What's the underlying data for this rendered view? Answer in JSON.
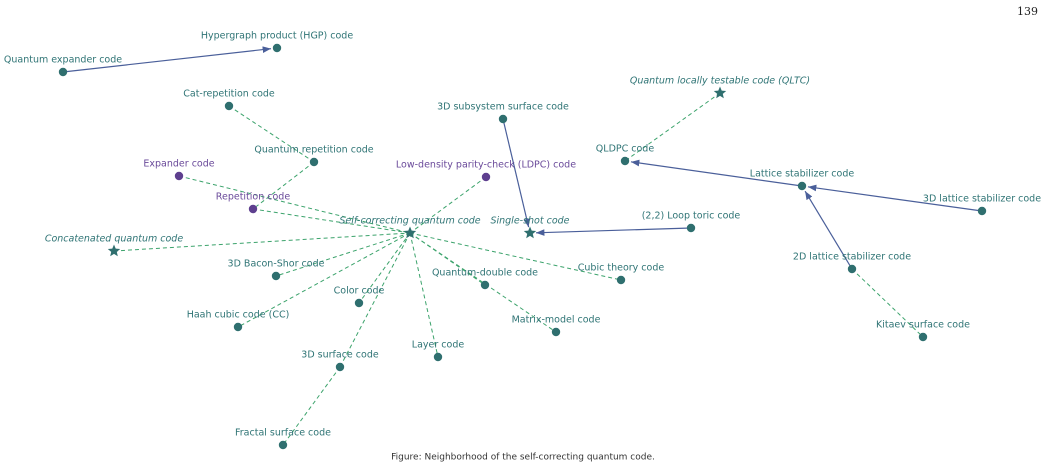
{
  "page_number": "139",
  "caption": "Figure: Neighborhood of the self-correcting quantum code.",
  "nodes": [
    {
      "label": "Quantum expander code",
      "shape": "circle",
      "color": "teal",
      "italic": false
    },
    {
      "label": "Hypergraph product (HGP) code",
      "shape": "circle",
      "color": "teal",
      "italic": false
    },
    {
      "label": "Cat-repetition code",
      "shape": "circle",
      "color": "teal",
      "italic": false
    },
    {
      "label": "Quantum repetition code",
      "shape": "circle",
      "color": "teal",
      "italic": false
    },
    {
      "label": "Expander code",
      "shape": "circle",
      "color": "purple",
      "italic": false
    },
    {
      "label": "Repetition code",
      "shape": "circle",
      "color": "purple",
      "italic": false
    },
    {
      "label": "Low-density parity-check (LDPC) code",
      "shape": "circle",
      "color": "purple",
      "italic": false
    },
    {
      "label": "3D subsystem surface code",
      "shape": "circle",
      "color": "teal",
      "italic": false
    },
    {
      "label": "Self-correcting quantum code",
      "shape": "star",
      "color": "teal",
      "italic": true
    },
    {
      "label": "Single-shot code",
      "shape": "star",
      "color": "teal",
      "italic": true
    },
    {
      "label": "Concatenated quantum code",
      "shape": "star",
      "color": "teal",
      "italic": true
    },
    {
      "label": "(2,2) Loop toric code",
      "shape": "circle",
      "color": "teal",
      "italic": false
    },
    {
      "label": "3D Bacon-Shor code",
      "shape": "circle",
      "color": "teal",
      "italic": false
    },
    {
      "label": "Quantum-double code",
      "shape": "circle",
      "color": "teal",
      "italic": false
    },
    {
      "label": "Cubic theory code",
      "shape": "circle",
      "color": "teal",
      "italic": false
    },
    {
      "label": "Color code",
      "shape": "circle",
      "color": "teal",
      "italic": false
    },
    {
      "label": "Haah cubic code (CC)",
      "shape": "circle",
      "color": "teal",
      "italic": false
    },
    {
      "label": "Matrix-model code",
      "shape": "circle",
      "color": "teal",
      "italic": false
    },
    {
      "label": "Layer code",
      "shape": "circle",
      "color": "teal",
      "italic": false
    },
    {
      "label": "3D surface code",
      "shape": "circle",
      "color": "teal",
      "italic": false
    },
    {
      "label": "Fractal surface code",
      "shape": "circle",
      "color": "teal",
      "italic": false
    },
    {
      "label": "Quantum locally testable code (QLTC)",
      "shape": "star",
      "color": "teal",
      "italic": true
    },
    {
      "label": "QLDPC code",
      "shape": "circle",
      "color": "teal",
      "italic": false
    },
    {
      "label": "Lattice stabilizer code",
      "shape": "circle",
      "color": "teal",
      "italic": false
    },
    {
      "label": "3D lattice stabilizer code",
      "shape": "circle",
      "color": "teal",
      "italic": false
    },
    {
      "label": "2D lattice stabilizer code",
      "shape": "circle",
      "color": "teal",
      "italic": false
    },
    {
      "label": "Kitaev surface code",
      "shape": "circle",
      "color": "teal",
      "italic": false
    }
  ],
  "edges": [
    {
      "from": 0,
      "to": 1,
      "style": "arrow"
    },
    {
      "from": 7,
      "to": 9,
      "style": "arrow"
    },
    {
      "from": 11,
      "to": 9,
      "style": "arrow"
    },
    {
      "from": 23,
      "to": 22,
      "style": "arrow"
    },
    {
      "from": 24,
      "to": 23,
      "style": "arrow"
    },
    {
      "from": 25,
      "to": 23,
      "style": "arrow"
    },
    {
      "from": 2,
      "to": 3,
      "style": "dashed"
    },
    {
      "from": 3,
      "to": 5,
      "style": "dashed"
    },
    {
      "from": 4,
      "to": 8,
      "style": "dashed"
    },
    {
      "from": 6,
      "to": 8,
      "style": "dashed"
    },
    {
      "from": 5,
      "to": 8,
      "style": "dashed"
    },
    {
      "from": 10,
      "to": 8,
      "style": "dashed"
    },
    {
      "from": 8,
      "to": 12,
      "style": "dashed"
    },
    {
      "from": 8,
      "to": 16,
      "style": "dashed"
    },
    {
      "from": 8,
      "to": 15,
      "style": "dashed"
    },
    {
      "from": 8,
      "to": 19,
      "style": "dashed"
    },
    {
      "from": 8,
      "to": 18,
      "style": "dashed"
    },
    {
      "from": 8,
      "to": 13,
      "style": "dashed"
    },
    {
      "from": 8,
      "to": 14,
      "style": "dashed"
    },
    {
      "from": 8,
      "to": 17,
      "style": "dashed"
    },
    {
      "from": 19,
      "to": 20,
      "style": "dashed"
    },
    {
      "from": 21,
      "to": 22,
      "style": "dashed"
    },
    {
      "from": 25,
      "to": 26,
      "style": "dashed"
    }
  ]
}
